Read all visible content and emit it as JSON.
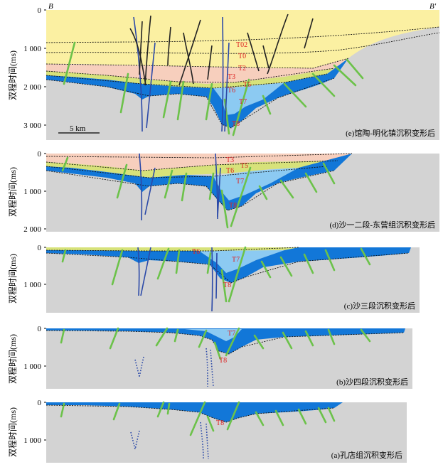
{
  "figure": {
    "ylabel": "双程时间(ms)",
    "corner_left": "B",
    "corner_right": "B'",
    "scale_label": "5 km",
    "colors": {
      "gray": "#d3d3d3",
      "blue": "#1277d8",
      "light_blue": "#8ccaf2",
      "yellow_green": "#d7e27a",
      "pink": "#f7cfbd",
      "yellow": "#fbf0a2",
      "fault_green": "#6cc24a",
      "fault_blue": "#2b49a8",
      "fault_black": "#222222",
      "horizon_label": "#d22222"
    },
    "panels": [
      {
        "id": "e",
        "caption": "(e)馆陶-明化镇沉积变形后",
        "ticks": [
          "0",
          "1 000",
          "2 000",
          "3 000"
        ],
        "horizons": [
          "T02",
          "T0",
          "T2",
          "T3",
          "T6",
          "T5",
          "T7",
          "T8"
        ]
      },
      {
        "id": "d",
        "caption": "(d)沙一二段-东营组沉积变形后",
        "ticks": [
          "0",
          "1 000",
          "2 000"
        ],
        "horizons": [
          "T3",
          "T6",
          "T5",
          "T7",
          "T8"
        ]
      },
      {
        "id": "c",
        "caption": "(c)沙三段沉积变形后",
        "ticks": [
          "0",
          "1 000"
        ],
        "horizons": [
          "T6",
          "T7",
          "T8"
        ]
      },
      {
        "id": "b",
        "caption": "(b)沙四段沉积变形后",
        "ticks": [
          "0",
          "1 000"
        ],
        "horizons": [
          "T7",
          "T8"
        ]
      },
      {
        "id": "a",
        "caption": "(a)孔店组沉积变形后",
        "ticks": [
          "0",
          "1 000"
        ],
        "horizons": [
          "T8"
        ]
      }
    ]
  }
}
